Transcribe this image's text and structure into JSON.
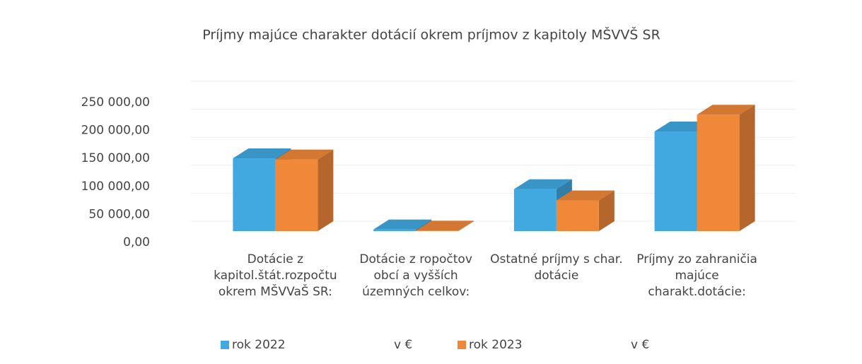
{
  "chart_data": {
    "type": "bar3d",
    "title": "Príjmy majúce charakter dotácií okrem príjmov z kapitoly MŠVVŠ SR",
    "categories": [
      "Dotácie z kapitol.štát.rozpočtu okrem MŠVVaŠ SR:",
      "Dotácie z ropočtov obcí a vyšších územných celkov:",
      "Ostatné príjmy s char. dotácie",
      "Príjmy zo zahraničia majúce charakt.dotácie:"
    ],
    "series": [
      {
        "name": "rok 2022",
        "unit": "v €",
        "color": "#41a9e0",
        "values": [
          130000,
          3000,
          75000,
          178000
        ]
      },
      {
        "name": "rok 2023",
        "unit": "v €",
        "color": "#f0883a",
        "values": [
          128000,
          1000,
          55000,
          208000
        ]
      }
    ],
    "ylim": [
      0,
      250000
    ],
    "yticks": [
      {
        "value": 0,
        "label": "0,00"
      },
      {
        "value": 50000,
        "label": "50 000,00"
      },
      {
        "value": 100000,
        "label": "100 000,00"
      },
      {
        "value": 150000,
        "label": "150 000,00"
      },
      {
        "value": 200000,
        "label": "200 000,00"
      },
      {
        "value": 250000,
        "label": "250 000,00"
      }
    ],
    "grid": true
  }
}
